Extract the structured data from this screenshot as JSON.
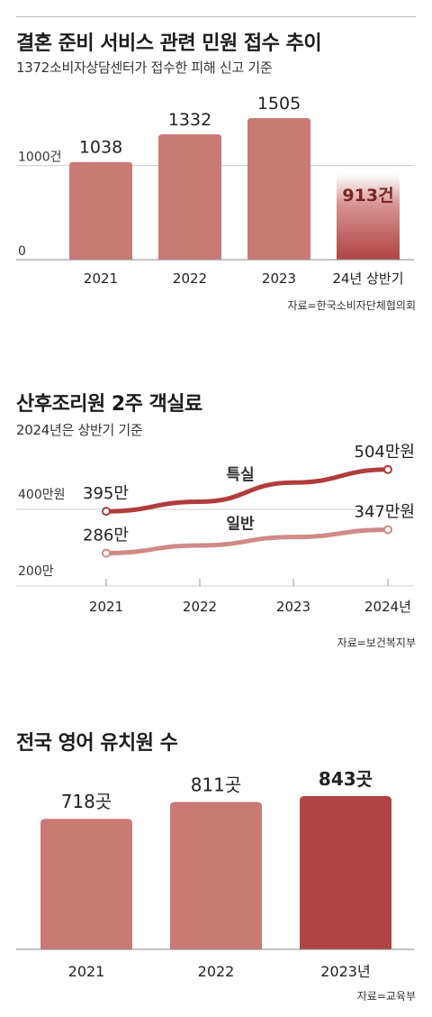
{
  "colors": {
    "bar": "#c97a74",
    "highlight": "#b04444",
    "line_top": "#b03c3c",
    "line_bottom": "#d08a86",
    "axis": "#999999",
    "grid": "#cccccc"
  },
  "sections": {
    "complaints": {
      "title": "결혼 준비 서비스 관련 민원 접수 추이",
      "subtitle": "1372소비자상담센터가 접수한 피해 신고 기준",
      "source": "자료=한국소비자단체협의회"
    },
    "postpartum": {
      "title": "산후조리원 2주 객실료",
      "subtitle": "2024년은 상반기 기준",
      "source": "자료=보건복지부"
    },
    "kindergartens": {
      "title": "전국 영어 유치원 수",
      "source": "자료=교육부"
    }
  },
  "chart_data": [
    {
      "type": "bar",
      "categories": [
        "2021",
        "2022",
        "2023",
        "24년 상반기"
      ],
      "values": [
        1038,
        1332,
        1505,
        913
      ],
      "value_labels": [
        "1038",
        "1332",
        "1505",
        "913건"
      ],
      "highlight_index": 3,
      "yticks": [
        {
          "value": 0,
          "label": "0"
        },
        {
          "value": 1000,
          "label": "1000건"
        }
      ],
      "ylim": [
        0,
        1550
      ]
    },
    {
      "type": "line",
      "x": [
        "2021",
        "2022",
        "2023",
        "2024년"
      ],
      "series": [
        {
          "name": "특실",
          "values": [
            395,
            420,
            470,
            504
          ],
          "start_label": "395만",
          "end_label": "504만원"
        },
        {
          "name": "일반",
          "values": [
            286,
            306,
            328,
            347
          ],
          "start_label": "286만",
          "end_label": "347만원"
        }
      ],
      "yticks": [
        {
          "value": 200,
          "label": "200만"
        },
        {
          "value": 400,
          "label": "400만원"
        }
      ],
      "ylim": [
        200,
        500
      ]
    },
    {
      "type": "bar",
      "categories": [
        "2021",
        "2022",
        "2023년"
      ],
      "values": [
        718,
        811,
        843
      ],
      "value_labels": [
        "718곳",
        "811곳",
        "843곳"
      ],
      "highlight_index": 2,
      "ylim": [
        0,
        843
      ]
    }
  ]
}
